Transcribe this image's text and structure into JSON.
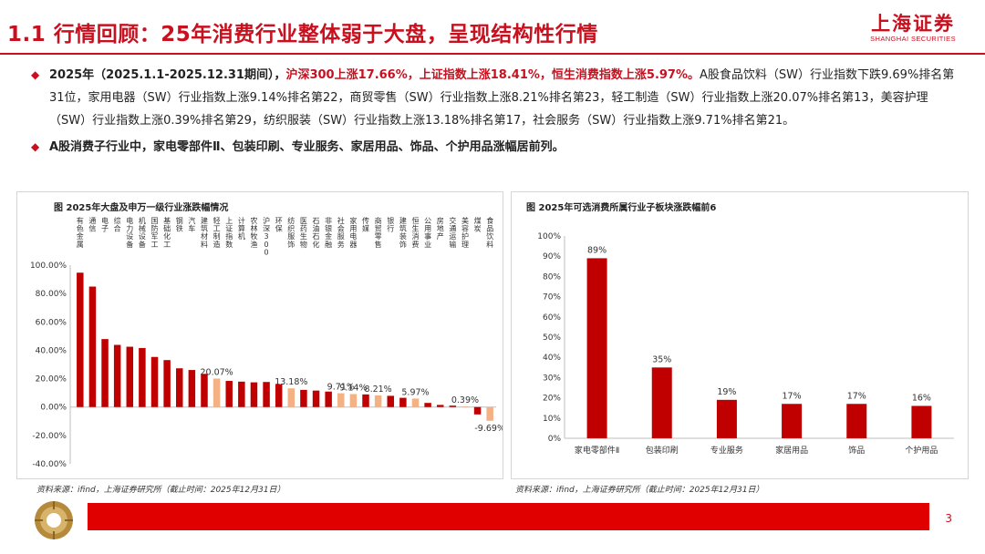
{
  "header": {
    "title": "1.1 行情回顾：25年消费行业整体弱于大盘，呈现结构性行情",
    "logo_cn": "上海证券",
    "logo_en": "SHANGHAI SECURITIES"
  },
  "bullets": {
    "b1_p1": "2025年（2025.1.1-2025.12.31期间），",
    "b1_p2": "沪深300上涨17.66%，上证指数上涨18.41%，恒生消费指数上涨5.97%。",
    "b1_p3": "A股食品饮料（SW）行业指数下跌9.69%排名第31位，家用电器（SW）行业指数上涨9.14%排名第22，商贸零售（SW）行业指数上涨8.21%排名第23，轻工制造（SW）行业指数上涨20.07%排名第13，美容护理（SW）行业指数上涨0.39%排名第29，纺织服装（SW）行业指数上涨13.18%排名第17，社会服务（SW）行业指数上涨9.71%排名第21。",
    "b2": "A股消费子行业中，家电零部件Ⅱ、包装印刷、专业服务、家居用品、饰品、个护用品涨幅居前列。"
  },
  "left_panel": {
    "title": "图 2025年大盘及申万一级行业涨跌幅情况",
    "source": "资料来源：ifind，上海证券研究所（截止时间：2025年12月31日）"
  },
  "right_panel": {
    "title": "图 2025年可选消费所属行业子板块涨跌幅前6",
    "source": "资料来源：ifind，上海证券研究所（截止时间：2025年12月31日）"
  },
  "footer": {
    "page": "3"
  },
  "chart_data": [
    {
      "type": "bar",
      "title": "图 2025年大盘及申万一级行业涨跌幅情况",
      "categories": [
        "有色金属",
        "通信",
        "电子",
        "综合",
        "电力设备",
        "机械设备",
        "国防军工",
        "基础化工",
        "钢铁",
        "汽车",
        "建筑材料",
        "轻工制造",
        "上证指数",
        "计算机",
        "农林牧渔",
        "沪深300",
        "环保",
        "纺织服饰",
        "医药生物",
        "石油石化",
        "非银金融",
        "社会服务",
        "家用电器",
        "传媒",
        "商贸零售",
        "银行",
        "建筑装饰",
        "恒生消费",
        "公用事业",
        "房地产",
        "交通运输",
        "美容护理",
        "煤炭",
        "食品饮料"
      ],
      "values": [
        94.7,
        84.9,
        47.9,
        43.8,
        42.5,
        41.6,
        35.3,
        33.1,
        27.3,
        26.1,
        23.4,
        20.07,
        18.41,
        17.9,
        17.4,
        17.66,
        16.1,
        13.18,
        12.1,
        11.6,
        10.9,
        9.71,
        9.14,
        8.9,
        8.21,
        7.9,
        6.5,
        5.97,
        2.9,
        1.5,
        1.0,
        0.39,
        -5.2,
        -9.69
      ],
      "highlight": [
        "轻工制造",
        "纺织服饰",
        "社会服务",
        "家用电器",
        "商贸零售",
        "恒生消费",
        "美容护理",
        "食品饮料"
      ],
      "data_labels": [
        {
          "category": "轻工制造",
          "label": "20.07%"
        },
        {
          "category": "纺织服饰",
          "label": "13.18%"
        },
        {
          "category": "社会服务",
          "label": "9.71%"
        },
        {
          "category": "家用电器",
          "label": "9.14%"
        },
        {
          "category": "商贸零售",
          "label": "8.21%"
        },
        {
          "category": "恒生消费",
          "label": "5.97%"
        },
        {
          "category": "美容护理",
          "label": "0.39%"
        },
        {
          "category": "食品饮料",
          "label": "-9.69%"
        }
      ],
      "yticks": [
        "100.00%",
        "80.00%",
        "60.00%",
        "40.00%",
        "20.00%",
        "0.00%",
        "-20.00%",
        "-40.00%"
      ],
      "ylim": [
        -40,
        100
      ],
      "colors": {
        "base": "#c00000",
        "highlight": "#f4b183"
      }
    },
    {
      "type": "bar",
      "title": "图 2025年可选消费所属行业子板块涨跌幅前6",
      "categories": [
        "家电零部件Ⅱ",
        "包装印刷",
        "专业服务",
        "家居用品",
        "饰品",
        "个护用品"
      ],
      "values": [
        89,
        35,
        19,
        17,
        17,
        16
      ],
      "labels": [
        "89%",
        "35%",
        "19%",
        "17%",
        "17%",
        "16%"
      ],
      "yticks": [
        "100%",
        "90%",
        "80%",
        "70%",
        "60%",
        "50%",
        "40%",
        "30%",
        "20%",
        "10%",
        "0%"
      ],
      "ylim": [
        0,
        100
      ],
      "colors": {
        "base": "#c00000"
      }
    }
  ]
}
